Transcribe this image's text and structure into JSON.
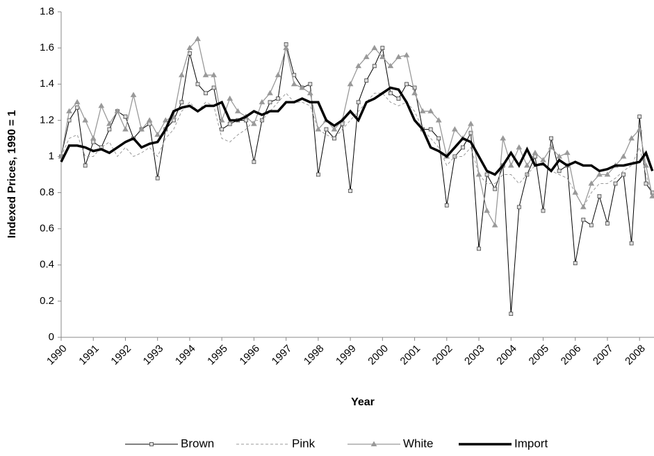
{
  "chart_data": {
    "type": "line",
    "xlabel": "Year",
    "ylabel": "Indexed Prices, 1990 = 1",
    "x": [
      1990,
      1990.25,
      1990.5,
      1990.75,
      1991,
      1991.25,
      1991.5,
      1991.75,
      1992,
      1992.25,
      1992.5,
      1992.75,
      1993,
      1993.25,
      1993.5,
      1993.75,
      1994,
      1994.25,
      1994.5,
      1994.75,
      1995,
      1995.25,
      1995.5,
      1995.75,
      1996,
      1996.25,
      1996.5,
      1996.75,
      1997,
      1997.25,
      1997.5,
      1997.75,
      1998,
      1998.25,
      1998.5,
      1998.75,
      1999,
      1999.25,
      1999.5,
      1999.75,
      2000,
      2000.25,
      2000.5,
      2000.75,
      2001,
      2001.25,
      2001.5,
      2001.75,
      2002,
      2002.25,
      2002.5,
      2002.75,
      2003,
      2003.25,
      2003.5,
      2003.75,
      2004,
      2004.25,
      2004.5,
      2004.75,
      2005,
      2005.25,
      2005.5,
      2005.75,
      2006,
      2006.25,
      2006.5,
      2006.75,
      2007,
      2007.25,
      2007.5,
      2007.75,
      2008,
      2008.2,
      2008.4
    ],
    "series": [
      {
        "name": "Brown",
        "color": "#000000",
        "width": 1,
        "dash": "none",
        "marker": "square",
        "values": [
          1.0,
          1.2,
          1.27,
          0.95,
          1.08,
          1.05,
          1.15,
          1.25,
          1.22,
          1.1,
          1.15,
          1.18,
          0.88,
          1.15,
          1.2,
          1.3,
          1.57,
          1.4,
          1.35,
          1.38,
          1.15,
          1.18,
          1.2,
          1.2,
          0.97,
          1.2,
          1.3,
          1.32,
          1.62,
          1.45,
          1.38,
          1.4,
          0.9,
          1.15,
          1.1,
          1.18,
          0.81,
          1.3,
          1.42,
          1.5,
          1.6,
          1.35,
          1.32,
          1.4,
          1.38,
          1.15,
          1.15,
          1.1,
          0.73,
          1.0,
          1.05,
          1.13,
          0.49,
          0.9,
          0.82,
          0.95,
          0.13,
          0.72,
          0.9,
          1.0,
          0.7,
          1.1,
          0.92,
          0.95,
          0.41,
          0.65,
          0.62,
          0.78,
          0.63,
          0.85,
          0.9,
          0.52,
          1.22,
          0.85,
          0.8
        ]
      },
      {
        "name": "Pink",
        "color": "#999999",
        "width": 1,
        "dash": "4 3",
        "marker": "none",
        "values": [
          1.0,
          1.1,
          1.12,
          1.0,
          1.0,
          1.05,
          1.08,
          1.0,
          1.05,
          1.0,
          1.02,
          1.05,
          1.0,
          1.1,
          1.15,
          1.25,
          1.3,
          1.25,
          1.3,
          1.28,
          1.1,
          1.08,
          1.12,
          1.15,
          1.2,
          1.2,
          1.25,
          1.3,
          1.35,
          1.3,
          1.3,
          1.28,
          1.15,
          1.12,
          1.1,
          1.15,
          1.2,
          1.25,
          1.3,
          1.35,
          1.35,
          1.3,
          1.28,
          1.3,
          1.25,
          1.15,
          1.1,
          1.05,
          0.95,
          1.0,
          1.0,
          1.05,
          0.9,
          0.85,
          0.85,
          0.9,
          0.9,
          0.85,
          0.9,
          0.95,
          0.95,
          0.92,
          0.9,
          0.88,
          0.8,
          0.72,
          0.8,
          0.85,
          0.85,
          0.88,
          0.92,
          0.95,
          1.05,
          0.9,
          0.78
        ]
      },
      {
        "name": "White",
        "color": "#999999",
        "width": 1.3,
        "dash": "none",
        "marker": "triangle",
        "values": [
          1.0,
          1.25,
          1.3,
          1.2,
          1.1,
          1.28,
          1.18,
          1.25,
          1.15,
          1.34,
          1.15,
          1.2,
          1.12,
          1.2,
          1.22,
          1.45,
          1.6,
          1.65,
          1.45,
          1.45,
          1.2,
          1.32,
          1.25,
          1.22,
          1.18,
          1.3,
          1.35,
          1.45,
          1.6,
          1.4,
          1.38,
          1.35,
          1.15,
          1.2,
          1.15,
          1.2,
          1.4,
          1.5,
          1.55,
          1.6,
          1.55,
          1.5,
          1.55,
          1.56,
          1.35,
          1.25,
          1.25,
          1.2,
          1.0,
          1.15,
          1.1,
          1.18,
          0.9,
          0.7,
          0.62,
          1.1,
          0.95,
          1.05,
          0.95,
          1.02,
          0.98,
          1.05,
          1.0,
          1.02,
          0.8,
          0.72,
          0.85,
          0.9,
          0.9,
          0.95,
          1.0,
          1.1,
          1.15,
          0.95,
          0.78
        ]
      },
      {
        "name": "Import",
        "color": "#000000",
        "width": 3.5,
        "dash": "none",
        "marker": "none",
        "values": [
          0.97,
          1.06,
          1.06,
          1.05,
          1.03,
          1.04,
          1.02,
          1.05,
          1.08,
          1.1,
          1.05,
          1.07,
          1.08,
          1.15,
          1.25,
          1.27,
          1.28,
          1.25,
          1.28,
          1.28,
          1.3,
          1.2,
          1.2,
          1.22,
          1.25,
          1.23,
          1.25,
          1.25,
          1.3,
          1.3,
          1.32,
          1.3,
          1.3,
          1.2,
          1.17,
          1.2,
          1.25,
          1.2,
          1.3,
          1.32,
          1.35,
          1.38,
          1.37,
          1.3,
          1.2,
          1.15,
          1.05,
          1.03,
          1.0,
          1.05,
          1.1,
          1.08,
          1.0,
          0.92,
          0.9,
          0.95,
          1.02,
          0.95,
          1.04,
          0.95,
          0.96,
          0.92,
          0.98,
          0.95,
          0.97,
          0.95,
          0.95,
          0.92,
          0.93,
          0.95,
          0.95,
          0.96,
          0.97,
          1.02,
          0.92
        ]
      }
    ],
    "xlim": [
      1990,
      2008.45
    ],
    "xticks": [
      1990,
      1991,
      1992,
      1993,
      1994,
      1995,
      1996,
      1997,
      1998,
      1999,
      2000,
      2001,
      2002,
      2003,
      2004,
      2005,
      2006,
      2007,
      2008
    ],
    "ylim": [
      0,
      1.8
    ],
    "yticks": [
      0,
      0.2,
      0.4,
      0.6,
      0.8,
      1,
      1.2,
      1.4,
      1.6,
      1.8
    ],
    "grid": false,
    "legend": "bottom"
  }
}
